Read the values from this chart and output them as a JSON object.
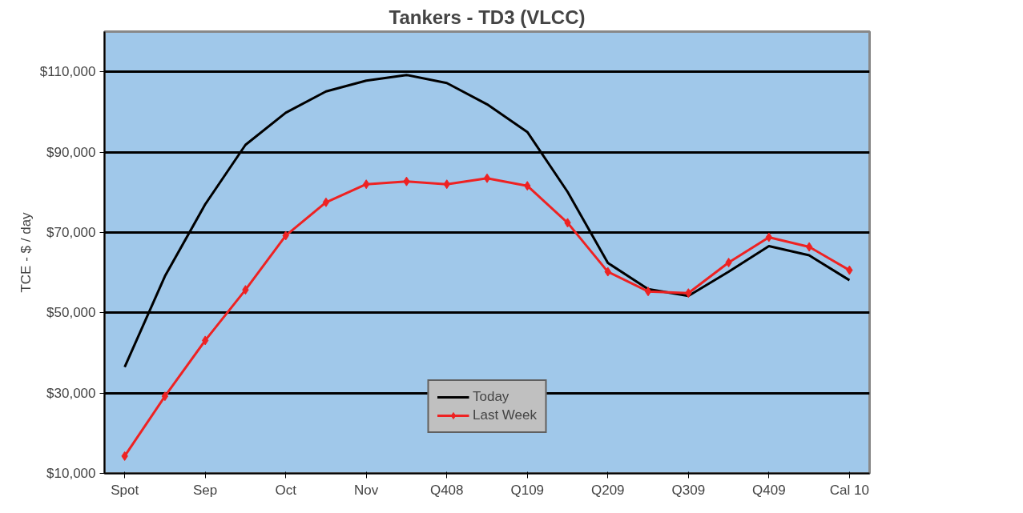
{
  "chart_data": {
    "type": "line",
    "title": "Tankers - TD3 (VLCC)",
    "ylabel": "TCE - $ / day",
    "categories": [
      "Spot",
      null,
      "Sep",
      null,
      "Oct",
      null,
      "Nov",
      null,
      "Q408",
      null,
      "Q109",
      null,
      "Q209",
      null,
      "Q309",
      null,
      "Q409",
      null,
      "Cal 10"
    ],
    "ylim": [
      10000,
      120000
    ],
    "yticks": [
      {
        "value": 10000,
        "label": "$10,000"
      },
      {
        "value": 30000,
        "label": "$30,000"
      },
      {
        "value": 50000,
        "label": "$50,000"
      },
      {
        "value": 70000,
        "label": "$70,000"
      },
      {
        "value": 90000,
        "label": "$90,000"
      },
      {
        "value": 110000,
        "label": "$110,000"
      }
    ],
    "grid": "y",
    "legend": "bottom",
    "series": [
      {
        "name": "Today",
        "color": "#000000",
        "marker": "none",
        "values": [
          36500,
          59100,
          77000,
          91800,
          99800,
          105100,
          107800,
          109200,
          107200,
          101900,
          95000,
          80100,
          62400,
          55900,
          54200,
          60200,
          66600,
          64300,
          58100
        ]
      },
      {
        "name": "Last Week",
        "color": "#ee2222",
        "marker": "diamond",
        "values": [
          14300,
          29200,
          43100,
          55700,
          69200,
          77500,
          82000,
          82700,
          82000,
          83500,
          81600,
          72400,
          60200,
          55300,
          54900,
          62500,
          68800,
          66400,
          60600
        ]
      }
    ]
  }
}
